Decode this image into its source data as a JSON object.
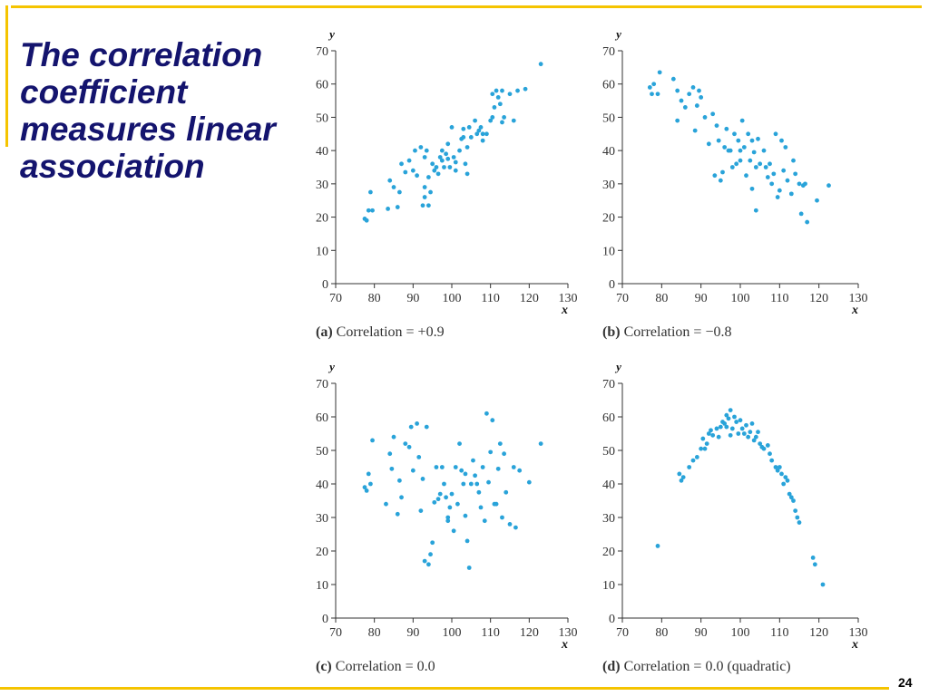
{
  "slide": {
    "title": "The correlation coefficient measures linear association",
    "page_number": "24",
    "accent_color": "#f5c400",
    "title_color": "#14146e",
    "point_color": "#29a3d9"
  },
  "chart_data": [
    {
      "type": "scatter",
      "label_letter": "(a)",
      "caption": "Correlation = +0.9",
      "xlabel": "x",
      "ylabel": "y",
      "xlim": [
        70,
        130
      ],
      "ylim": [
        0,
        70
      ],
      "xticks": [
        70,
        80,
        90,
        100,
        110,
        120,
        130
      ],
      "yticks": [
        0,
        10,
        20,
        30,
        40,
        50,
        60,
        70
      ],
      "points": [
        [
          77.5,
          19.5
        ],
        [
          78,
          19
        ],
        [
          78.5,
          22
        ],
        [
          79,
          27.5
        ],
        [
          79.5,
          22
        ],
        [
          83.5,
          22.5
        ],
        [
          84,
          31
        ],
        [
          85,
          29
        ],
        [
          86,
          23
        ],
        [
          86.5,
          27.5
        ],
        [
          87,
          36
        ],
        [
          88,
          33.5
        ],
        [
          89,
          37
        ],
        [
          90,
          34
        ],
        [
          90.5,
          40
        ],
        [
          91,
          32.5
        ],
        [
          92,
          41
        ],
        [
          92.5,
          23.5
        ],
        [
          93,
          29
        ],
        [
          93,
          26
        ],
        [
          93,
          38
        ],
        [
          93.5,
          40
        ],
        [
          94,
          23.5
        ],
        [
          94,
          32
        ],
        [
          94.5,
          27.5
        ],
        [
          95,
          36
        ],
        [
          95.5,
          34
        ],
        [
          96,
          35
        ],
        [
          96.5,
          33
        ],
        [
          97,
          38
        ],
        [
          97.5,
          37
        ],
        [
          97.5,
          40
        ],
        [
          98,
          35
        ],
        [
          98.5,
          39
        ],
        [
          99,
          37.5
        ],
        [
          99,
          42
        ],
        [
          99.5,
          35
        ],
        [
          100,
          47
        ],
        [
          100.5,
          38
        ],
        [
          101,
          36.5
        ],
        [
          101,
          34
        ],
        [
          102,
          40
        ],
        [
          102.5,
          43.5
        ],
        [
          103,
          44
        ],
        [
          103,
          46.5
        ],
        [
          103.5,
          36
        ],
        [
          104,
          41
        ],
        [
          104,
          33
        ],
        [
          104.5,
          47
        ],
        [
          105,
          44
        ],
        [
          106,
          49
        ],
        [
          106.5,
          45
        ],
        [
          107,
          46
        ],
        [
          107.5,
          47
        ],
        [
          108,
          43
        ],
        [
          108,
          45
        ],
        [
          109,
          45
        ],
        [
          110,
          49
        ],
        [
          110.5,
          50
        ],
        [
          110.5,
          57
        ],
        [
          111,
          53
        ],
        [
          111.5,
          58
        ],
        [
          112,
          56
        ],
        [
          112.5,
          54
        ],
        [
          113,
          58
        ],
        [
          113,
          48.5
        ],
        [
          113.5,
          50
        ],
        [
          115,
          57
        ],
        [
          116,
          49
        ],
        [
          117,
          58
        ],
        [
          119,
          58.5
        ],
        [
          123,
          66
        ]
      ]
    },
    {
      "type": "scatter",
      "label_letter": "(b)",
      "caption": "Correlation = −0.8",
      "xlabel": "x",
      "ylabel": "y",
      "xlim": [
        70,
        130
      ],
      "ylim": [
        0,
        70
      ],
      "xticks": [
        70,
        80,
        90,
        100,
        110,
        120,
        130
      ],
      "yticks": [
        0,
        10,
        20,
        30,
        40,
        50,
        60,
        70
      ],
      "points": [
        [
          77,
          59
        ],
        [
          77.5,
          57
        ],
        [
          78,
          60
        ],
        [
          79,
          57
        ],
        [
          79.5,
          63.5
        ],
        [
          83,
          61.5
        ],
        [
          84,
          58
        ],
        [
          84,
          49
        ],
        [
          85,
          55
        ],
        [
          86,
          53
        ],
        [
          87,
          57
        ],
        [
          88,
          59
        ],
        [
          88.5,
          46
        ],
        [
          89,
          53.5
        ],
        [
          89.5,
          58
        ],
        [
          90,
          56
        ],
        [
          91,
          50
        ],
        [
          92,
          42
        ],
        [
          93,
          51
        ],
        [
          93.5,
          32.5
        ],
        [
          94,
          47.5
        ],
        [
          94.5,
          43
        ],
        [
          95,
          31
        ],
        [
          95.5,
          33.5
        ],
        [
          96,
          41
        ],
        [
          96.5,
          46.5
        ],
        [
          97,
          40
        ],
        [
          97.5,
          40
        ],
        [
          98,
          35
        ],
        [
          98.5,
          45
        ],
        [
          99,
          36
        ],
        [
          99.5,
          43
        ],
        [
          100,
          40
        ],
        [
          100,
          37
        ],
        [
          100.5,
          49
        ],
        [
          101,
          41
        ],
        [
          101.5,
          32.5
        ],
        [
          102,
          45
        ],
        [
          102.5,
          37
        ],
        [
          103,
          28.5
        ],
        [
          103,
          43
        ],
        [
          103.5,
          39.5
        ],
        [
          104,
          35
        ],
        [
          104,
          22
        ],
        [
          104.5,
          43.5
        ],
        [
          105,
          36
        ],
        [
          106,
          40
        ],
        [
          106.5,
          35
        ],
        [
          107,
          32
        ],
        [
          107.5,
          36
        ],
        [
          108,
          30
        ],
        [
          108.5,
          33
        ],
        [
          109,
          45
        ],
        [
          109.5,
          26
        ],
        [
          110,
          28
        ],
        [
          110.5,
          43
        ],
        [
          111,
          34
        ],
        [
          111.5,
          41
        ],
        [
          112,
          31
        ],
        [
          113,
          27
        ],
        [
          113.5,
          37
        ],
        [
          114,
          33
        ],
        [
          115,
          30
        ],
        [
          115.5,
          21
        ],
        [
          116,
          29.5
        ],
        [
          116.5,
          30
        ],
        [
          117,
          18.5
        ],
        [
          119.5,
          25
        ],
        [
          122.5,
          29.5
        ]
      ]
    },
    {
      "type": "scatter",
      "label_letter": "(c)",
      "caption": "Correlation = 0.0",
      "xlabel": "x",
      "ylabel": "y",
      "xlim": [
        70,
        130
      ],
      "ylim": [
        0,
        70
      ],
      "xticks": [
        70,
        80,
        90,
        100,
        110,
        120,
        130
      ],
      "yticks": [
        0,
        10,
        20,
        30,
        40,
        50,
        60,
        70
      ],
      "points": [
        [
          77.5,
          39
        ],
        [
          78,
          38
        ],
        [
          78.5,
          43
        ],
        [
          79,
          40
        ],
        [
          79.5,
          53
        ],
        [
          83,
          34
        ],
        [
          84,
          49
        ],
        [
          84.5,
          44.5
        ],
        [
          85,
          54
        ],
        [
          86,
          31
        ],
        [
          86.5,
          41
        ],
        [
          87,
          36
        ],
        [
          88,
          52
        ],
        [
          89,
          51
        ],
        [
          89.5,
          57
        ],
        [
          90,
          44
        ],
        [
          91,
          58
        ],
        [
          91.5,
          48
        ],
        [
          92,
          32
        ],
        [
          92.5,
          41.5
        ],
        [
          93,
          17
        ],
        [
          93.5,
          57
        ],
        [
          94,
          16
        ],
        [
          94.5,
          19
        ],
        [
          95,
          22.5
        ],
        [
          95.5,
          34.5
        ],
        [
          96,
          45
        ],
        [
          96.5,
          35.5
        ],
        [
          97,
          37
        ],
        [
          97.5,
          45
        ],
        [
          98,
          40
        ],
        [
          98.5,
          36
        ],
        [
          99,
          30
        ],
        [
          99,
          29
        ],
        [
          99.5,
          33
        ],
        [
          100,
          37
        ],
        [
          100.5,
          26
        ],
        [
          101,
          45
        ],
        [
          101.5,
          34
        ],
        [
          102,
          52
        ],
        [
          102.5,
          44
        ],
        [
          103,
          40
        ],
        [
          103.5,
          43
        ],
        [
          103.5,
          30.5
        ],
        [
          104,
          23
        ],
        [
          104.5,
          15
        ],
        [
          105,
          40
        ],
        [
          105.5,
          47
        ],
        [
          106,
          42.5
        ],
        [
          106.5,
          40
        ],
        [
          107,
          37.5
        ],
        [
          107.5,
          33
        ],
        [
          108,
          45
        ],
        [
          108.5,
          29
        ],
        [
          109,
          61
        ],
        [
          109.5,
          40.5
        ],
        [
          110,
          49.5
        ],
        [
          110.5,
          59
        ],
        [
          111,
          34
        ],
        [
          111.5,
          34
        ],
        [
          112,
          44.5
        ],
        [
          112.5,
          52
        ],
        [
          113,
          30
        ],
        [
          113.5,
          49
        ],
        [
          114,
          37.5
        ],
        [
          115,
          28
        ],
        [
          116,
          45
        ],
        [
          116.5,
          27
        ],
        [
          117.5,
          44
        ],
        [
          120,
          40.5
        ],
        [
          123,
          52
        ]
      ]
    },
    {
      "type": "scatter",
      "label_letter": "(d)",
      "caption": "Correlation = 0.0 (quadratic)",
      "xlabel": "x",
      "ylabel": "y",
      "xlim": [
        70,
        130
      ],
      "ylim": [
        0,
        70
      ],
      "xticks": [
        70,
        80,
        90,
        100,
        110,
        120,
        130
      ],
      "yticks": [
        0,
        10,
        20,
        30,
        40,
        50,
        60,
        70
      ],
      "points": [
        [
          79,
          21.5
        ],
        [
          84.5,
          43
        ],
        [
          85,
          41
        ],
        [
          85.5,
          42
        ],
        [
          87,
          45
        ],
        [
          88,
          47
        ],
        [
          89,
          48
        ],
        [
          90,
          50.5
        ],
        [
          90.5,
          53.5
        ],
        [
          91,
          50.5
        ],
        [
          91.5,
          52
        ],
        [
          92,
          55
        ],
        [
          92.5,
          56
        ],
        [
          93,
          54.5
        ],
        [
          94,
          56.5
        ],
        [
          94.5,
          54
        ],
        [
          95,
          57
        ],
        [
          95.5,
          58.5
        ],
        [
          96,
          58
        ],
        [
          96.5,
          60.5
        ],
        [
          96.5,
          57
        ],
        [
          97,
          59.5
        ],
        [
          97.5,
          62
        ],
        [
          97.5,
          54.5
        ],
        [
          98,
          56.5
        ],
        [
          98.5,
          60
        ],
        [
          99,
          58.5
        ],
        [
          99.5,
          55
        ],
        [
          100,
          59
        ],
        [
          100.5,
          56.5
        ],
        [
          101,
          55
        ],
        [
          101.5,
          57.5
        ],
        [
          102,
          54
        ],
        [
          102.5,
          55.5
        ],
        [
          103,
          58
        ],
        [
          103.5,
          53
        ],
        [
          104,
          54
        ],
        [
          104.5,
          55.5
        ],
        [
          105,
          52
        ],
        [
          105.5,
          51
        ],
        [
          106,
          50.5
        ],
        [
          107,
          51.5
        ],
        [
          107.5,
          49
        ],
        [
          108,
          47
        ],
        [
          109,
          45
        ],
        [
          109.5,
          44
        ],
        [
          110,
          45
        ],
        [
          110.5,
          43
        ],
        [
          111,
          40
        ],
        [
          111.5,
          42
        ],
        [
          112,
          41
        ],
        [
          112.5,
          37
        ],
        [
          113,
          36
        ],
        [
          113.5,
          35
        ],
        [
          114,
          32
        ],
        [
          114.5,
          30
        ],
        [
          115,
          28.5
        ],
        [
          118.5,
          18
        ],
        [
          119,
          16
        ],
        [
          121,
          10
        ]
      ]
    }
  ]
}
